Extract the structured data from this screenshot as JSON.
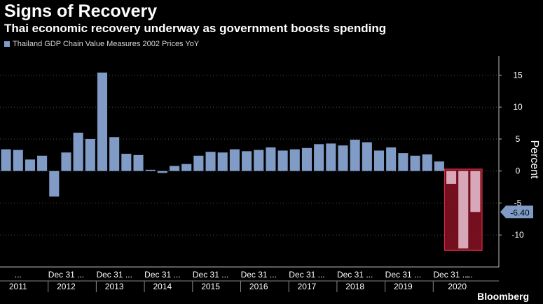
{
  "title": "Signs of Recovery",
  "subtitle": "Thai economic recovery underway as government boosts spending",
  "legend": {
    "label": "Thailand GDP Chain Value Measures 2002 Prices YoY"
  },
  "brand": "Bloomberg",
  "colors": {
    "background": "#000000",
    "bar": "#7f9bc6",
    "bar_highlight": "#d8a8b8",
    "highlight_fill": "#7a1020",
    "highlight_border": "#e0304a",
    "grid": "#555555",
    "callout": "#7f9bc6"
  },
  "chart_data": {
    "type": "bar",
    "title": "Signs of Recovery",
    "subtitle": "Thai economic recovery underway as government boosts spending",
    "ylabel": "Percent",
    "ylim": [
      -15,
      18
    ],
    "yticks": [
      15,
      10,
      5,
      0,
      -5,
      -10
    ],
    "ytick_labels": [
      "15",
      "10",
      "5",
      "0",
      "-5",
      "-10"
    ],
    "grid": true,
    "legend_position": "top-left",
    "series": [
      {
        "name": "Thailand GDP Chain Value Measures 2002 Prices YoY",
        "values": [
          3.4,
          3.3,
          1.8,
          2.4,
          -4.0,
          2.9,
          6.0,
          5.0,
          15.4,
          5.3,
          2.7,
          2.5,
          0.2,
          -0.3,
          0.8,
          1.1,
          2.4,
          3.0,
          2.9,
          3.4,
          3.1,
          3.3,
          3.7,
          3.2,
          3.4,
          3.6,
          4.2,
          4.3,
          4.0,
          4.9,
          4.5,
          3.2,
          3.7,
          2.8,
          2.4,
          2.6,
          1.5,
          -2.0,
          -12.1,
          -6.4
        ]
      }
    ],
    "last_value_label": "-6.40",
    "highlight_range": [
      37,
      39
    ],
    "x_tick_labels": [
      "...",
      "Dec 31 ...",
      "Dec 31 ...",
      "Dec 31 ...",
      "Dec 31 ...",
      "Dec 31 ...",
      "Dec 31 ...",
      "Dec 31 ...",
      "Dec 31 ...",
      "Dec 31 ...",
      "..."
    ],
    "x_tick_positions": [
      1.5,
      5.5,
      9.5,
      13.5,
      17.5,
      21.5,
      25.5,
      29.5,
      33.5,
      37.5,
      39.0
    ],
    "year_labels": [
      "2011",
      "2012",
      "2013",
      "2014",
      "2015",
      "2016",
      "2017",
      "2018",
      "2019",
      "2020"
    ],
    "year_positions": [
      1.5,
      5.5,
      9.5,
      13.5,
      17.5,
      21.5,
      25.5,
      29.5,
      33.5,
      38.0
    ]
  }
}
